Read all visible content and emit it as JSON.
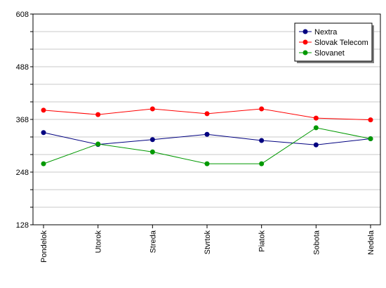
{
  "chart_data": {
    "type": "line",
    "categories": [
      "Pondelok",
      "Utorok",
      "Streda",
      "Stvrtok",
      "Piatok",
      "Sobota",
      "Nedela"
    ],
    "series": [
      {
        "name": "Nextra",
        "color": "#000080",
        "values": [
          338,
          311,
          322,
          334,
          320,
          310,
          324
        ]
      },
      {
        "name": "Slovak Telecom",
        "color": "#ff0000",
        "values": [
          389,
          379,
          392,
          381,
          392,
          371,
          367
        ]
      },
      {
        "name": "Slovanet",
        "color": "#009900",
        "values": [
          267,
          312,
          294,
          267,
          267,
          349,
          324
        ]
      }
    ],
    "ylim": [
      128,
      608
    ],
    "yticks": [
      128,
      248,
      368,
      488,
      608
    ],
    "grid": true,
    "legend_position": "top-right"
  }
}
